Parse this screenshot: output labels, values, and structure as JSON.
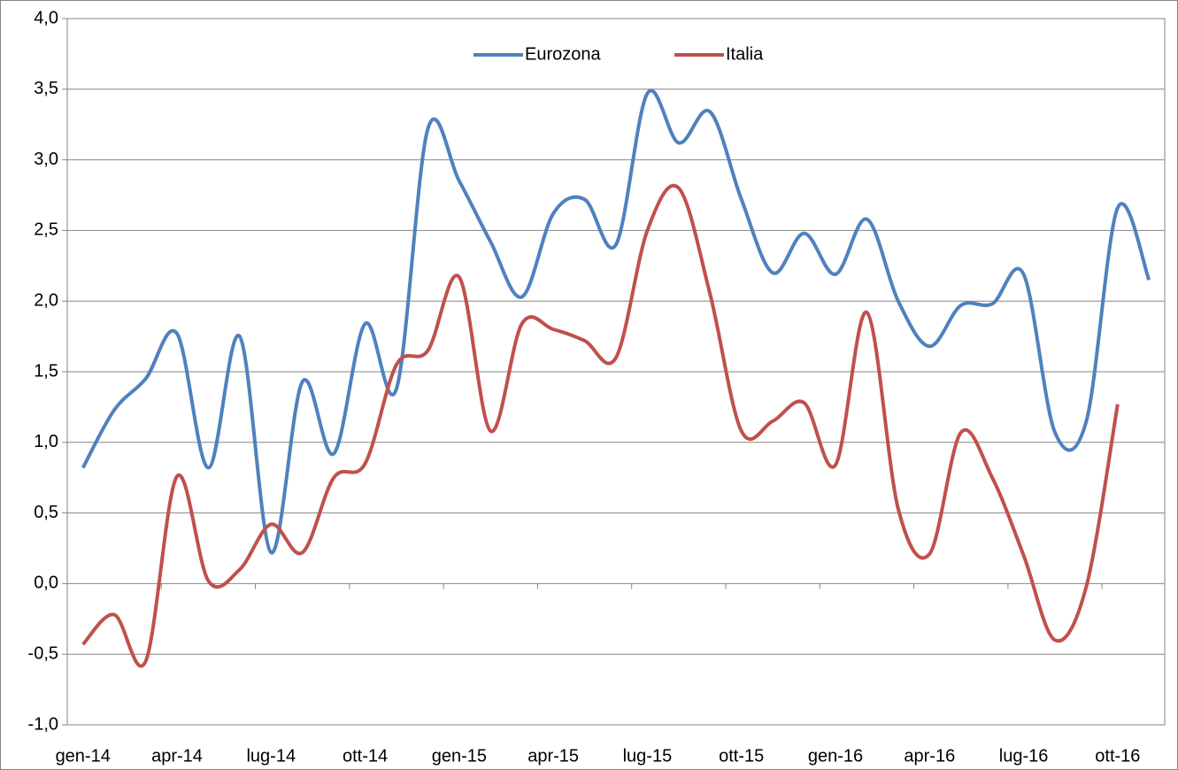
{
  "chart_data": {
    "type": "line",
    "categories": [
      "gen-14",
      null,
      null,
      "apr-14",
      null,
      null,
      "lug-14",
      null,
      null,
      "ott-14",
      null,
      null,
      "gen-15",
      null,
      null,
      "apr-15",
      null,
      null,
      "lug-15",
      null,
      null,
      "ott-15",
      null,
      null,
      "gen-16",
      null,
      null,
      "apr-16",
      null,
      null,
      "lug-16",
      null,
      null,
      "ott-16",
      null
    ],
    "series": [
      {
        "name": "Eurozona",
        "color": "#4f81bd",
        "values": [
          0.82,
          1.23,
          1.45,
          1.77,
          0.82,
          1.75,
          0.22,
          1.43,
          0.92,
          1.84,
          1.38,
          3.22,
          2.85,
          2.42,
          2.03,
          2.62,
          2.72,
          2.4,
          3.47,
          3.12,
          3.34,
          2.72,
          2.2,
          2.48,
          2.19,
          2.58,
          2.0,
          1.68,
          1.97,
          1.98,
          2.19,
          1.07,
          1.15,
          2.66,
          2.15
        ]
      },
      {
        "name": "Italia",
        "color": "#c0504d",
        "values": [
          -0.43,
          -0.22,
          -0.55,
          0.76,
          0.02,
          0.1,
          0.42,
          0.22,
          0.75,
          0.85,
          1.55,
          1.65,
          2.17,
          1.08,
          1.84,
          1.8,
          1.72,
          1.6,
          2.5,
          2.8,
          2.05,
          1.08,
          1.15,
          1.28,
          0.84,
          1.92,
          0.53,
          0.21,
          1.07,
          0.75,
          0.2,
          -0.4,
          -0.02,
          1.27,
          null
        ]
      }
    ],
    "ylim": [
      -1,
      4
    ],
    "yticks": [
      {
        "value": -1,
        "label": "-1,0"
      },
      {
        "value": -0.5,
        "label": "-0,5"
      },
      {
        "value": 0,
        "label": "0,0"
      },
      {
        "value": 0.5,
        "label": "0,5"
      },
      {
        "value": 1,
        "label": "1,0"
      },
      {
        "value": 1.5,
        "label": "1,5"
      },
      {
        "value": 2,
        "label": "2,0"
      },
      {
        "value": 2.5,
        "label": "2,5"
      },
      {
        "value": 3,
        "label": "3,0"
      },
      {
        "value": 3.5,
        "label": "3,5"
      },
      {
        "value": 4,
        "label": "4,0"
      }
    ],
    "grid": true,
    "legend": "top"
  }
}
